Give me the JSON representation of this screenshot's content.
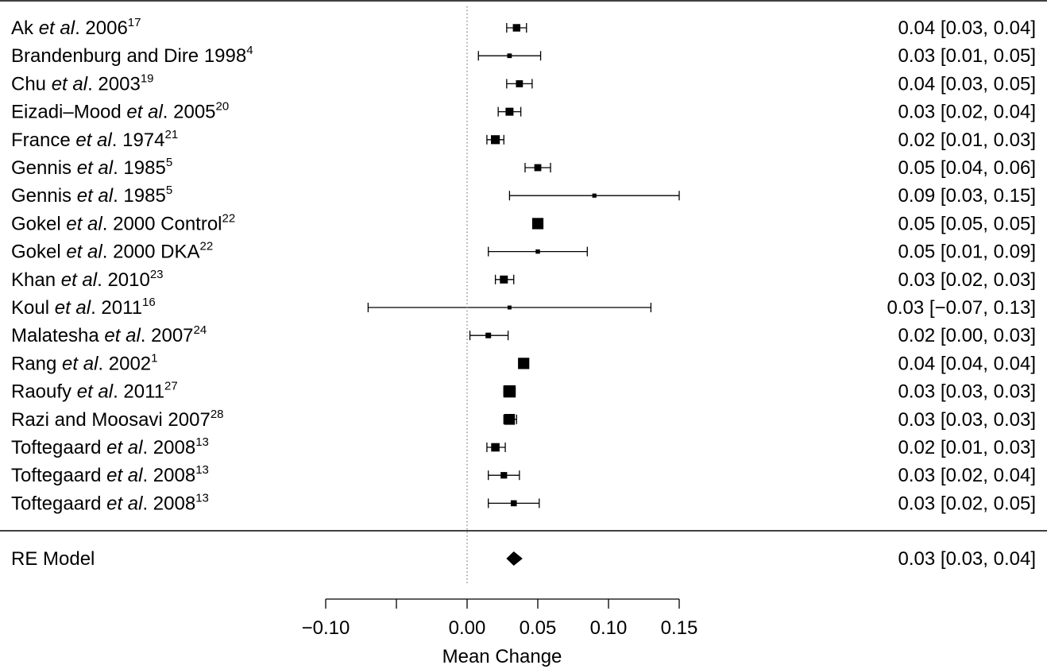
{
  "chart_data": {
    "type": "forest",
    "xlabel": "Mean Change",
    "xlim": [
      -0.1,
      0.15
    ],
    "ticks": [
      -0.1,
      -0.05,
      0.0,
      0.05,
      0.1,
      0.15
    ],
    "tick_labels": [
      "−0.10",
      "",
      "0.00",
      "0.05",
      "0.10",
      "0.15"
    ],
    "reference_line": 0,
    "studies": [
      {
        "label": "Ak",
        "etal": true,
        "year": "2006",
        "suffix": "",
        "ref": "17",
        "estimate": 0.035,
        "lower": 0.028,
        "upper": 0.042,
        "ci_text": "0.04 [0.03, 0.04]",
        "weight": 0.45
      },
      {
        "label": "Brandenburg and Dire",
        "etal": false,
        "year": "1998",
        "suffix": "",
        "ref": "4",
        "estimate": 0.03,
        "lower": 0.008,
        "upper": 0.052,
        "ci_text": "0.03 [0.01, 0.05]",
        "weight": 0.15
      },
      {
        "label": "Chu",
        "etal": true,
        "year": "2003",
        "suffix": "",
        "ref": "19",
        "estimate": 0.037,
        "lower": 0.028,
        "upper": 0.046,
        "ci_text": "0.04 [0.03, 0.05]",
        "weight": 0.4
      },
      {
        "label": "Eizadi–Mood",
        "etal": true,
        "year": "2005",
        "suffix": "",
        "ref": "20",
        "estimate": 0.03,
        "lower": 0.022,
        "upper": 0.038,
        "ci_text": "0.03 [0.02, 0.04]",
        "weight": 0.5
      },
      {
        "label": "France",
        "etal": true,
        "year": "1974",
        "suffix": "",
        "ref": "21",
        "estimate": 0.02,
        "lower": 0.014,
        "upper": 0.026,
        "ci_text": "0.02 [0.01, 0.03]",
        "weight": 0.6
      },
      {
        "label": "Gennis",
        "etal": true,
        "year": "1985",
        "suffix": "",
        "ref": "5",
        "estimate": 0.05,
        "lower": 0.041,
        "upper": 0.059,
        "ci_text": "0.05 [0.04, 0.06]",
        "weight": 0.4
      },
      {
        "label": "Gennis",
        "etal": true,
        "year": "1985",
        "suffix": "",
        "ref": "5",
        "estimate": 0.09,
        "lower": 0.03,
        "upper": 0.15,
        "ci_text": "0.09 [0.03, 0.15]",
        "weight": 0.1
      },
      {
        "label": "Gokel",
        "etal": true,
        "year": "2000 Control",
        "suffix": "",
        "ref": "22",
        "estimate": 0.05,
        "lower": 0.048,
        "upper": 0.052,
        "ci_text": "0.05 [0.05, 0.05]",
        "weight": 0.85
      },
      {
        "label": "Gokel",
        "etal": true,
        "year": "2000 DKA",
        "suffix": "",
        "ref": "22",
        "estimate": 0.05,
        "lower": 0.015,
        "upper": 0.085,
        "ci_text": "0.05 [0.01, 0.09]",
        "weight": 0.12
      },
      {
        "label": "Khan",
        "etal": true,
        "year": "2010",
        "suffix": "",
        "ref": "23",
        "estimate": 0.026,
        "lower": 0.02,
        "upper": 0.033,
        "ci_text": "0.03 [0.02, 0.03]",
        "weight": 0.5
      },
      {
        "label": "Koul",
        "etal": true,
        "year": "2011",
        "suffix": "",
        "ref": "16",
        "estimate": 0.03,
        "lower": -0.07,
        "upper": 0.13,
        "ci_text": "0.03 [−0.07, 0.13]",
        "weight": 0.08
      },
      {
        "label": "Malatesha",
        "etal": true,
        "year": "2007",
        "suffix": "",
        "ref": "24",
        "estimate": 0.015,
        "lower": 0.002,
        "upper": 0.029,
        "ci_text": "0.02 [0.00, 0.03]",
        "weight": 0.25
      },
      {
        "label": "Rang",
        "etal": true,
        "year": "2002",
        "suffix": "",
        "ref": "1",
        "estimate": 0.04,
        "lower": 0.038,
        "upper": 0.042,
        "ci_text": "0.04 [0.04, 0.04]",
        "weight": 0.85
      },
      {
        "label": "Raoufy",
        "etal": true,
        "year": "2011",
        "suffix": "",
        "ref": "27",
        "estimate": 0.03,
        "lower": 0.026,
        "upper": 0.034,
        "ci_text": "0.03 [0.03, 0.03]",
        "weight": 0.95
      },
      {
        "label": "Razi and Moosavi",
        "etal": false,
        "year": "2007",
        "suffix": "",
        "ref": "28",
        "estimate": 0.03,
        "lower": 0.026,
        "upper": 0.035,
        "ci_text": "0.03 [0.03, 0.03]",
        "weight": 0.8
      },
      {
        "label": "Toftegaard",
        "etal": true,
        "year": "2008",
        "suffix": "",
        "ref": "13",
        "estimate": 0.02,
        "lower": 0.014,
        "upper": 0.027,
        "ci_text": "0.02 [0.01, 0.03]",
        "weight": 0.55
      },
      {
        "label": "Toftegaard",
        "etal": true,
        "year": "2008",
        "suffix": "",
        "ref": "13",
        "estimate": 0.026,
        "lower": 0.015,
        "upper": 0.037,
        "ci_text": "0.03 [0.02, 0.04]",
        "weight": 0.35
      },
      {
        "label": "Toftegaard",
        "etal": true,
        "year": "2008",
        "suffix": "",
        "ref": "13",
        "estimate": 0.033,
        "lower": 0.015,
        "upper": 0.051,
        "ci_text": "0.03 [0.02, 0.05]",
        "weight": 0.3
      }
    ],
    "summary": {
      "label": "RE Model",
      "estimate": 0.033,
      "lower": 0.03,
      "upper": 0.037,
      "ci_text": "0.03 [0.03, 0.04]"
    }
  }
}
